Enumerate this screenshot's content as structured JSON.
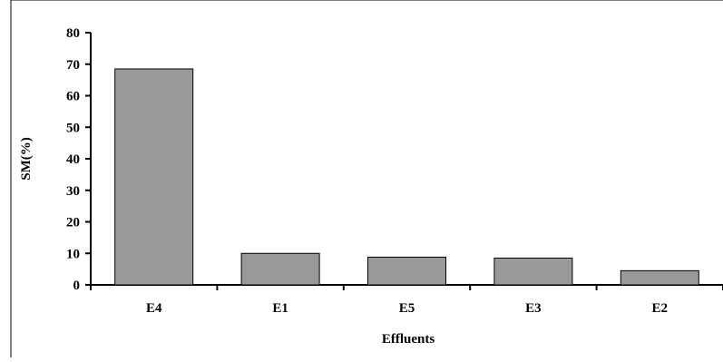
{
  "chart_data": {
    "type": "bar",
    "categories": [
      "E4",
      "E1",
      "E5",
      "E3",
      "E2"
    ],
    "values": [
      68.5,
      10,
      8.8,
      8.5,
      4.5
    ],
    "title": "",
    "xlabel": "Effluents",
    "ylabel": "SM(%)",
    "ylim": [
      0,
      80
    ],
    "yticks": [
      0,
      10,
      20,
      30,
      40,
      50,
      60,
      70,
      80
    ],
    "grid": false,
    "legend": "none",
    "bar_color": "#999999",
    "bar_edge_color": "#000000"
  }
}
